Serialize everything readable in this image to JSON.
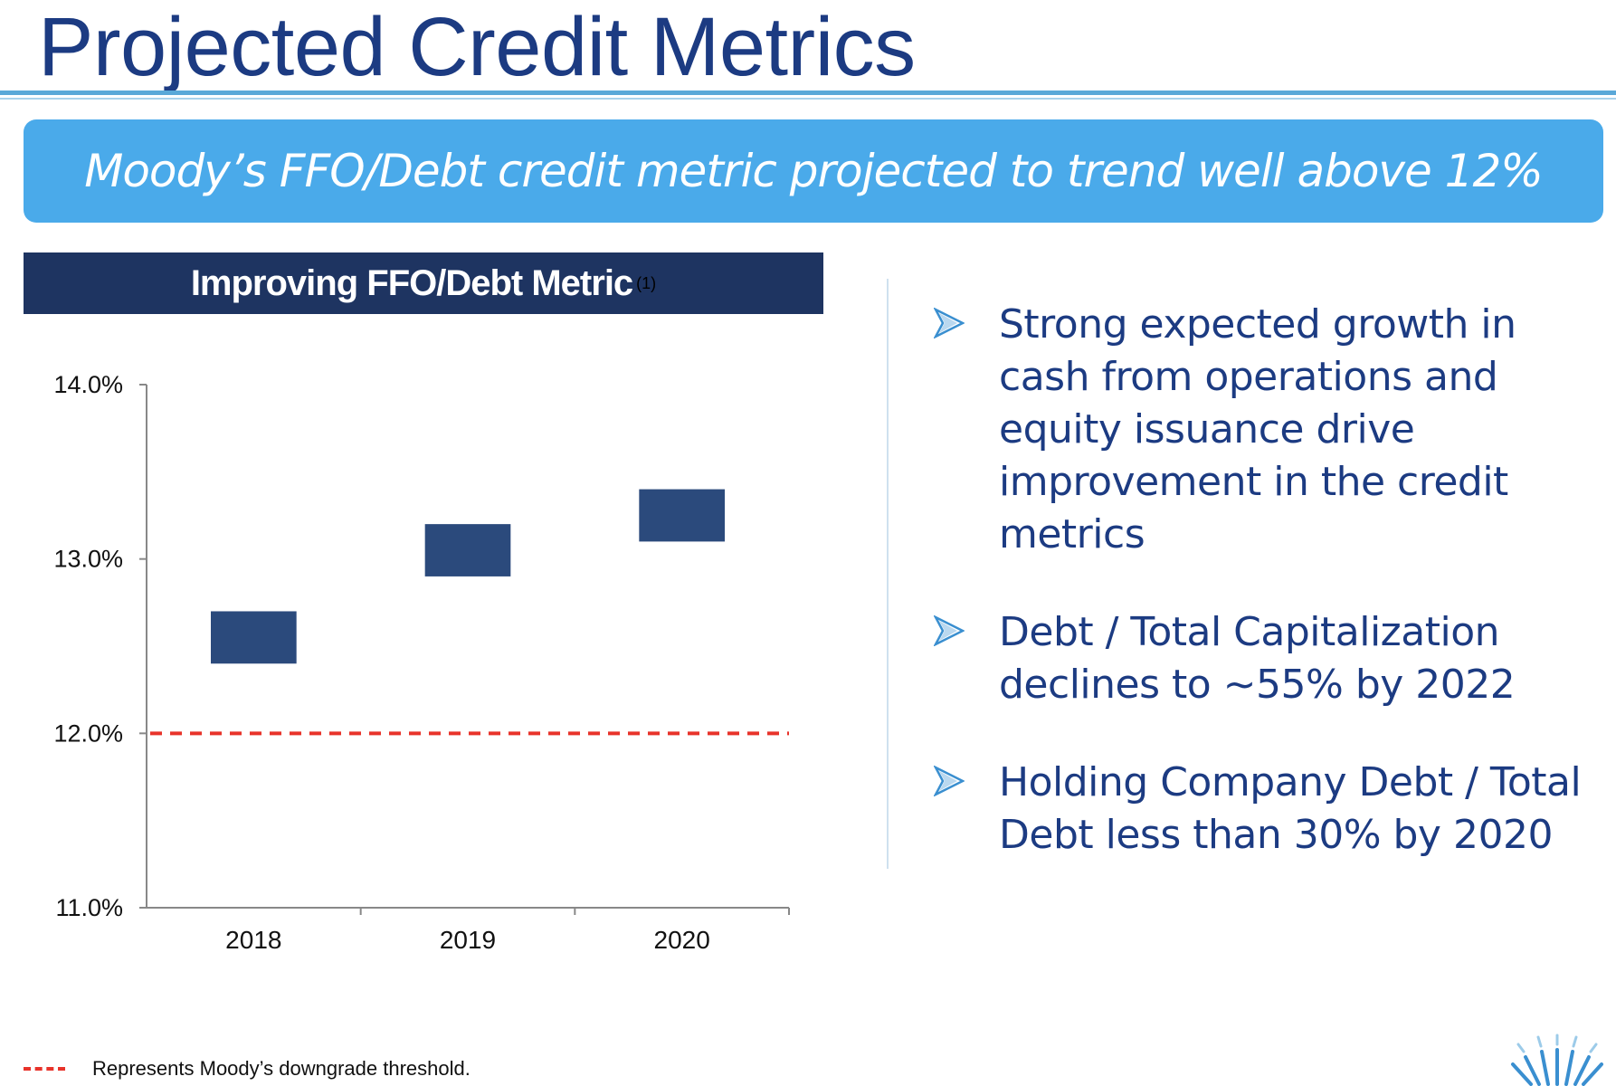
{
  "slide": {
    "title": "Projected Credit Metrics",
    "banner": "Moody’s FFO/Debt credit metric projected to trend well above 12%",
    "panel_title": "Improving FFO/Debt Metric",
    "panel_footnote_marker": "(1)",
    "footnote": "Represents Moody’s downgrade threshold.",
    "bullets": [
      {
        "text": "Strong expected growth in cash from operations and equity issuance drive improvement in the credit metrics"
      },
      {
        "text": "Debt / Total Capitalization declines to ~55% by 2022"
      },
      {
        "text": "Holding Company Debt / Total Debt less than 30% by 2020"
      }
    ],
    "colors": {
      "title": "#1c3b82",
      "banner": "#4aaaea",
      "panel_header": "#1e3461",
      "bar": "#2b4a7c",
      "threshold": "#e8332a",
      "bullet_arrow": "#3a8fd0"
    }
  },
  "chart_data": {
    "type": "floating-bar",
    "title": "Improving FFO/Debt Metric",
    "categories": [
      "2018",
      "2019",
      "2020"
    ],
    "ranges": [
      [
        12.4,
        12.7
      ],
      [
        12.9,
        13.2
      ],
      [
        13.1,
        13.4
      ]
    ],
    "ylim": [
      11.0,
      14.0
    ],
    "yticks": [
      11.0,
      12.0,
      13.0,
      14.0
    ],
    "ytick_labels": [
      "11.0%",
      "12.0%",
      "13.0%",
      "14.0%"
    ],
    "threshold": {
      "value": 12.0,
      "style": "dashed",
      "color": "#e8332a"
    },
    "grid": false,
    "xlabel": "",
    "ylabel": ""
  }
}
